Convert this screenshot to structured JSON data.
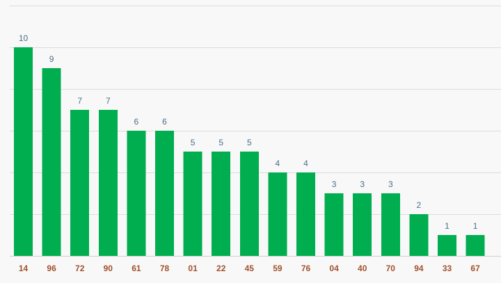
{
  "chart_data": {
    "type": "bar",
    "categories": [
      "14",
      "96",
      "72",
      "90",
      "61",
      "78",
      "01",
      "22",
      "45",
      "59",
      "76",
      "04",
      "40",
      "70",
      "94",
      "33",
      "67"
    ],
    "values": [
      10,
      9,
      7,
      7,
      6,
      6,
      5,
      5,
      5,
      4,
      4,
      3,
      3,
      3,
      2,
      1,
      1
    ],
    "title": "",
    "xlabel": "",
    "ylabel": "",
    "ylim": [
      0,
      12
    ],
    "grid": true,
    "legend": "none"
  },
  "colors": {
    "bar": "#00ae4f",
    "value_label": "#4a6f8a",
    "category_label": "#a0522d"
  }
}
